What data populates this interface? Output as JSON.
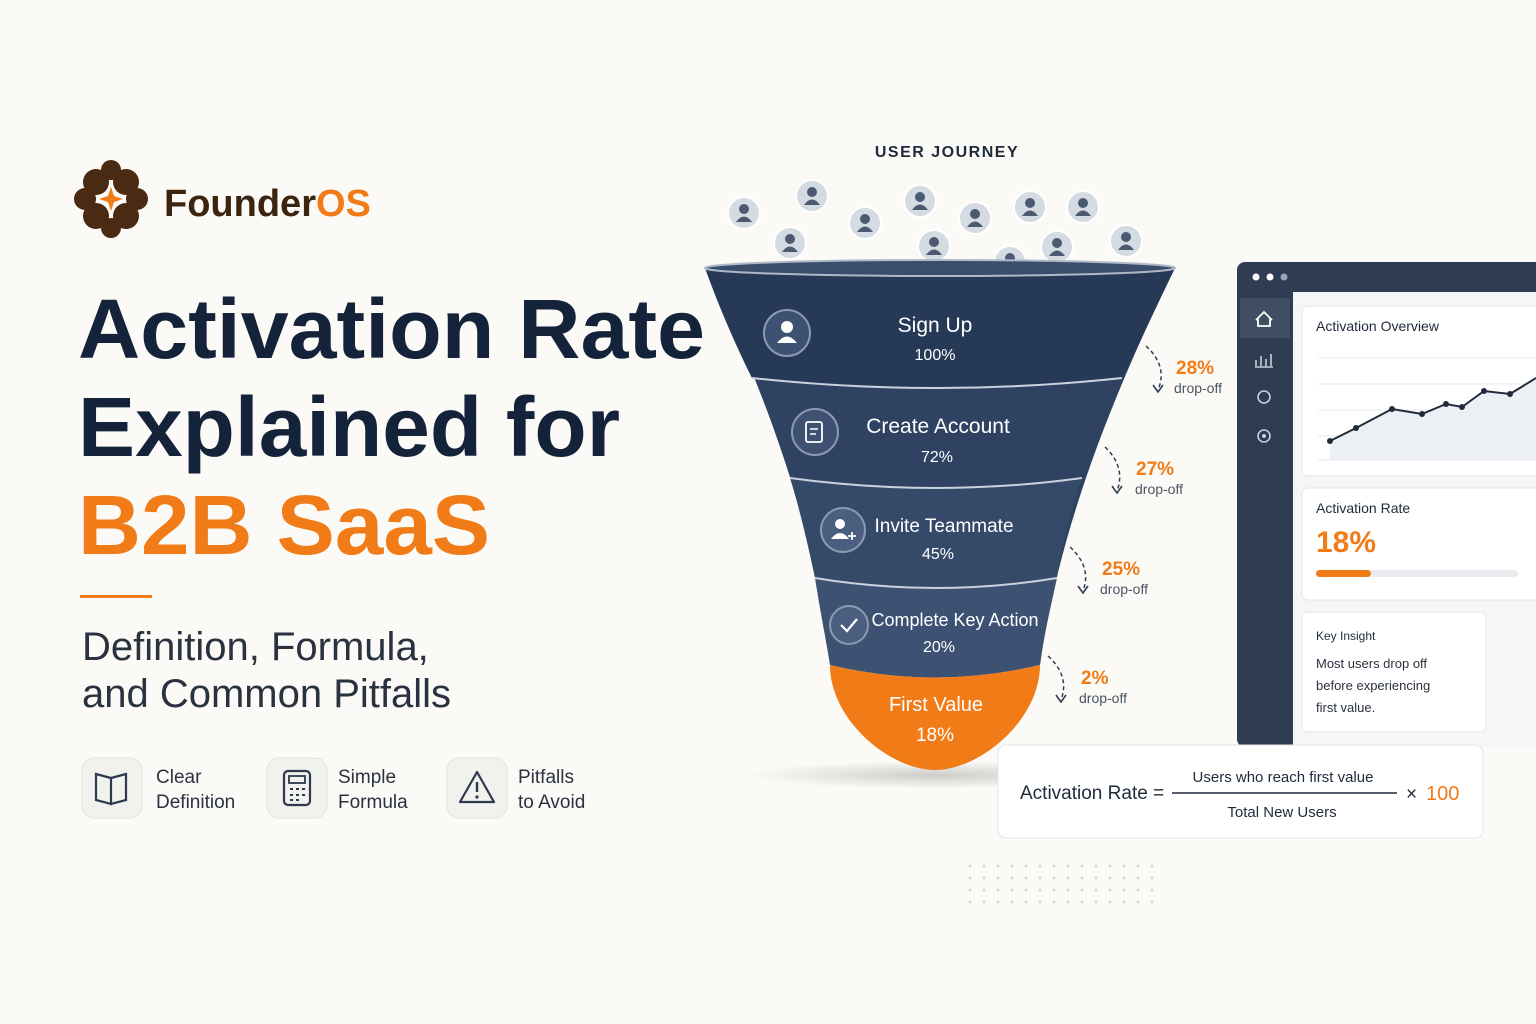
{
  "brand": {
    "name_main": "Founder",
    "name_accent": "OS"
  },
  "header": {
    "title_lines": [
      "Activation Rate",
      "Explained for"
    ],
    "title_accent": "B2B SaaS",
    "subtitle_lines": [
      "Definition, Formula,",
      "and Common Pitfalls"
    ]
  },
  "features": [
    {
      "lines": [
        "Clear",
        "Definition"
      ]
    },
    {
      "lines": [
        "Simple",
        "Formula"
      ]
    },
    {
      "lines": [
        "Pitfalls",
        "to Avoid"
      ]
    }
  ],
  "funnel": {
    "heading": "USER JOURNEY",
    "stages": [
      {
        "label": "Sign Up",
        "value": "100%"
      },
      {
        "label": "Create Account",
        "value": "72%"
      },
      {
        "label": "Invite Teammate",
        "value": "45%"
      },
      {
        "label": "Complete Key Action",
        "value": "20%"
      },
      {
        "label": "First Value",
        "value": "18%"
      }
    ],
    "dropoffs": [
      {
        "value": "28%",
        "label": "drop-off"
      },
      {
        "value": "27%",
        "label": "drop-off"
      },
      {
        "value": "25%",
        "label": "drop-off"
      },
      {
        "value": "2%",
        "label": "drop-off"
      }
    ]
  },
  "dashboard": {
    "overview_title": "Activation Overview",
    "rate_title": "Activation Rate",
    "rate_value": "18%",
    "insight_title": "Key Insight",
    "insight_lines": [
      "Most users drop off",
      "before experiencing",
      "first value."
    ]
  },
  "formula": {
    "lhs": "Activation Rate =",
    "numerator": "Users who reach first value",
    "denominator": "Total New Users",
    "times": "×",
    "factor": "100"
  }
}
